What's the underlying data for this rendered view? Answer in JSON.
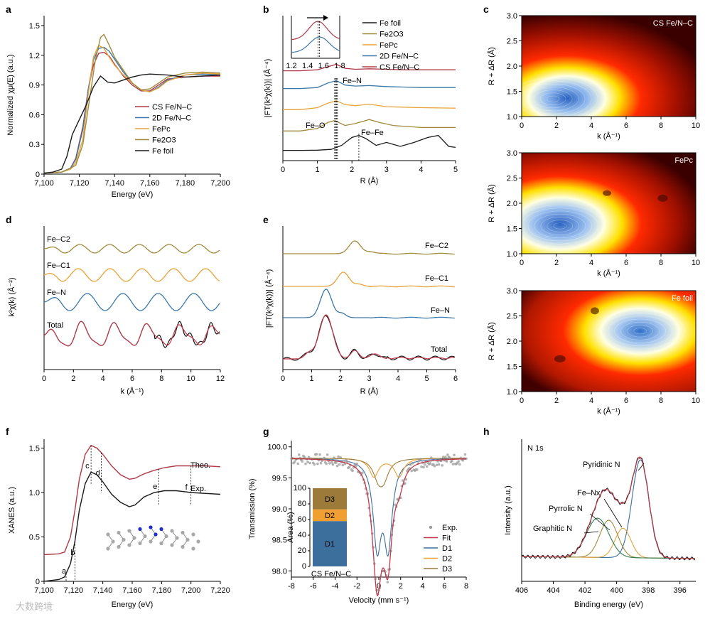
{
  "panel_labels": [
    "a",
    "b",
    "c",
    "d",
    "e",
    "f",
    "g",
    "h"
  ],
  "colors": {
    "cs_fenc": "#b03a48",
    "fe2o3": "#a08a3c",
    "fepc": "#e8a33a",
    "dfenc": "#3c78a8",
    "fefoil": "#1a1a1a",
    "exp_points": "#9a9a9a",
    "fit": "#c0394b",
    "d1": "#3c6f9c",
    "d2": "#f0a030",
    "d3": "#9c7a3a"
  },
  "watermark": "大数跨境",
  "chart_data": [
    {
      "id": "a",
      "type": "line",
      "xlabel": "Energy (eV)",
      "ylabel": "Normalized χμ(E) (a.u.)",
      "xlim": [
        7100,
        7200
      ],
      "ylim": [
        0,
        1.6
      ],
      "xticks": [
        7100,
        7120,
        7140,
        7160,
        7180,
        7200
      ],
      "xtick_labels": [
        "7,100",
        "7,120",
        "7,140",
        "7,160",
        "7,180",
        "7,200"
      ],
      "yticks": [
        0,
        0.3,
        0.6,
        0.9,
        1.2,
        1.5
      ],
      "ytick_labels": [
        "0",
        "0.3",
        "0.6",
        "0.9",
        "1.2",
        "1.5"
      ],
      "legend": [
        "CS Fe/N–C",
        "2D Fe/N–C",
        "FePc",
        "Fe2O3",
        "Fe foil"
      ],
      "legend_position": "right",
      "series": [
        {
          "name": "CS Fe/N–C",
          "color_key": "cs_fenc",
          "x": [
            7100,
            7110,
            7115,
            7118,
            7122,
            7125,
            7128,
            7131,
            7134,
            7137,
            7140,
            7145,
            7150,
            7155,
            7160,
            7165,
            7170,
            7180,
            7190,
            7200
          ],
          "y": [
            0.01,
            0.02,
            0.06,
            0.16,
            0.48,
            0.85,
            1.1,
            1.22,
            1.23,
            1.19,
            1.11,
            0.99,
            0.9,
            0.84,
            0.84,
            0.9,
            0.96,
            0.98,
            0.99,
            0.99
          ]
        },
        {
          "name": "2D Fe/N–C",
          "color_key": "dfenc",
          "x": [
            7100,
            7110,
            7115,
            7118,
            7122,
            7125,
            7128,
            7131,
            7134,
            7137,
            7140,
            7145,
            7150,
            7155,
            7160,
            7165,
            7170,
            7180,
            7190,
            7200
          ],
          "y": [
            0.01,
            0.02,
            0.06,
            0.15,
            0.45,
            0.85,
            1.15,
            1.27,
            1.28,
            1.24,
            1.16,
            1.03,
            0.92,
            0.85,
            0.83,
            0.88,
            0.95,
            1.0,
            1.01,
            1.0
          ]
        },
        {
          "name": "FePc",
          "color_key": "fepc",
          "x": [
            7100,
            7110,
            7115,
            7118,
            7122,
            7125,
            7128,
            7131,
            7134,
            7137,
            7140,
            7145,
            7150,
            7155,
            7160,
            7165,
            7170,
            7180,
            7190,
            7200
          ],
          "y": [
            0.01,
            0.02,
            0.05,
            0.12,
            0.35,
            0.8,
            1.18,
            1.3,
            1.27,
            1.18,
            1.1,
            1.0,
            0.92,
            0.85,
            0.83,
            0.87,
            0.94,
            1.0,
            1.02,
            1.01
          ]
        },
        {
          "name": "Fe2O3",
          "color_key": "fe2o3",
          "x": [
            7100,
            7110,
            7114,
            7118,
            7122,
            7126,
            7129,
            7132,
            7134,
            7137,
            7140,
            7145,
            7150,
            7155,
            7160,
            7165,
            7170,
            7180,
            7190,
            7200
          ],
          "y": [
            0.01,
            0.02,
            0.05,
            0.09,
            0.3,
            0.78,
            1.14,
            1.38,
            1.41,
            1.3,
            1.18,
            1.05,
            0.92,
            0.85,
            0.86,
            0.92,
            0.98,
            1.02,
            1.03,
            1.02
          ]
        },
        {
          "name": "Fe foil",
          "color_key": "fefoil",
          "x": [
            7100,
            7105,
            7110,
            7113,
            7116,
            7120,
            7124,
            7128,
            7132,
            7136,
            7140,
            7145,
            7150,
            7155,
            7160,
            7170,
            7180,
            7190,
            7200
          ],
          "y": [
            0.01,
            0.02,
            0.05,
            0.18,
            0.4,
            0.55,
            0.7,
            0.88,
            0.99,
            0.93,
            0.92,
            0.95,
            0.98,
            1.0,
            1.01,
            1.0,
            0.98,
            0.99,
            1.0
          ]
        }
      ]
    },
    {
      "id": "b",
      "type": "line",
      "xlabel": "R (Å)",
      "ylabel": "|FT(k³χ(k))| (Å⁻⁴)",
      "xlim": [
        0,
        5
      ],
      "xticks": [
        0,
        1,
        2,
        3,
        4,
        5
      ],
      "legend": [
        "Fe foil",
        "Fe2O3",
        "FePc",
        "2D Fe/N–C",
        "CS Fe/N–C"
      ],
      "legend_position": "top-right",
      "annotations": [
        "Fe–N",
        "Fe–O",
        "Fe–Fe"
      ],
      "inset": {
        "xlim": [
          1.2,
          1.8
        ],
        "xticks": [
          1.2,
          1.4,
          1.6,
          1.8
        ],
        "xtick_labels": [
          "1.2",
          "1.4",
          "1.6",
          "1.8"
        ]
      },
      "series": [
        {
          "name": "Fe foil",
          "color_key": "fefoil",
          "offset": 0.0,
          "x": [
            0,
            0.5,
            1.0,
            1.4,
            1.7,
            2.0,
            2.2,
            2.4,
            2.7,
            3.0,
            3.4,
            3.8,
            4.2,
            4.5,
            4.8,
            5.0
          ],
          "y": [
            0.1,
            0.1,
            0.12,
            0.2,
            0.6,
            1.4,
            1.6,
            1.3,
            0.6,
            0.9,
            0.5,
            0.9,
            1.4,
            1.6,
            0.5,
            0.4
          ]
        },
        {
          "name": "Fe2O3",
          "color_key": "fe2o3",
          "offset": 1.6,
          "x": [
            0,
            0.5,
            1.0,
            1.3,
            1.5,
            1.8,
            2.1,
            2.5,
            2.8,
            3.2,
            3.6,
            4.0,
            4.5,
            5.0
          ],
          "y": [
            0.05,
            0.05,
            0.3,
            0.9,
            1.1,
            0.6,
            0.8,
            1.2,
            0.9,
            0.6,
            0.5,
            0.4,
            0.4,
            0.4
          ]
        },
        {
          "name": "FePc",
          "color_key": "fepc",
          "offset": 3.0,
          "x": [
            0,
            0.5,
            1.0,
            1.3,
            1.55,
            1.8,
            2.1,
            2.5,
            3.0,
            3.5,
            4.0,
            5.0
          ],
          "y": [
            0.05,
            0.05,
            0.25,
            0.7,
            0.95,
            0.55,
            0.45,
            0.6,
            0.35,
            0.3,
            0.25,
            0.2
          ]
        },
        {
          "name": "2D Fe/N–C",
          "color_key": "dfenc",
          "offset": 4.0,
          "x": [
            0,
            0.5,
            1.0,
            1.3,
            1.55,
            1.8,
            2.1,
            2.5,
            3.0,
            3.5,
            4.0,
            5.0
          ],
          "y": [
            0.1,
            0.1,
            0.2,
            0.65,
            0.9,
            0.45,
            0.35,
            0.4,
            0.3,
            0.25,
            0.2,
            0.2
          ]
        },
        {
          "name": "CS Fe/N–C",
          "color_key": "cs_fenc",
          "offset": 5.0,
          "x": [
            0,
            0.5,
            1.0,
            1.3,
            1.55,
            1.8,
            2.1,
            2.5,
            3.0,
            3.5,
            4.0,
            5.0
          ],
          "y": [
            0.1,
            0.1,
            0.2,
            0.5,
            0.75,
            0.35,
            0.25,
            0.3,
            0.25,
            0.2,
            0.2,
            0.2
          ]
        }
      ]
    },
    {
      "id": "c",
      "type": "heatmap",
      "maps": [
        {
          "label": "CS Fe/N–C",
          "xlabel": "k (Å⁻¹)",
          "ylabel": "R + ΔR (Å)",
          "xlim": [
            0,
            10
          ],
          "ylim": [
            1.0,
            3.0
          ],
          "xticks": [
            0,
            2,
            4,
            6,
            8,
            10
          ],
          "yticks": [
            1.0,
            1.5,
            2.0,
            2.5,
            3.0
          ],
          "ytick_labels": [
            "1.0",
            "1.5",
            "2.0",
            "2.5",
            "3.0"
          ],
          "peak": [
            1.8,
            1.35
          ]
        },
        {
          "label": "FePc",
          "xlabel": "k (Å⁻¹)",
          "ylabel": "R + ΔR (Å)",
          "xlim": [
            0,
            10
          ],
          "ylim": [
            1.0,
            3.0
          ],
          "xticks": [
            0,
            2,
            4,
            6,
            8,
            10
          ],
          "yticks": [
            1.0,
            1.5,
            2.0,
            2.5,
            3.0
          ],
          "ytick_labels": [
            "1.0",
            "1.5",
            "2.0",
            "2.5",
            "3.0"
          ],
          "peak": [
            2.2,
            1.55
          ]
        },
        {
          "label": "Fe foil",
          "xlabel": "k (Å⁻¹)",
          "ylabel": "R + ΔR (Å)",
          "xlim": [
            0,
            10
          ],
          "ylim": [
            1.0,
            3.0
          ],
          "xticks": [
            0,
            2,
            4,
            6,
            8,
            10
          ],
          "yticks": [
            1.0,
            1.5,
            2.0,
            2.5,
            3.0
          ],
          "ytick_labels": [
            "1.0",
            "1.5",
            "2.0",
            "2.5",
            "3.0"
          ],
          "peak": [
            6.8,
            2.2
          ]
        }
      ]
    },
    {
      "id": "d",
      "type": "line",
      "xlabel": "k (Å⁻¹)",
      "ylabel": "k²χ(k) (Å⁻²)",
      "xlim": [
        0,
        12
      ],
      "xticks": [
        0,
        2,
        4,
        6,
        8,
        10,
        12
      ],
      "labels": [
        "Fe–C2",
        "Fe–C1",
        "Fe–N",
        "Total"
      ]
    },
    {
      "id": "e",
      "type": "line",
      "xlabel": "R (Å)",
      "ylabel": "|FT(k³χ(k))| (Å⁻⁴)",
      "xlim": [
        0,
        6
      ],
      "xticks": [
        0,
        1,
        2,
        3,
        4,
        5,
        6
      ],
      "labels": [
        "Fe–C2",
        "Fe–C1",
        "Fe–N",
        "Total"
      ]
    },
    {
      "id": "f",
      "type": "line",
      "xlabel": "Energy (eV)",
      "ylabel": "XANES (a.u.)",
      "xlim": [
        7100,
        7220
      ],
      "ylim": [
        0,
        1.6
      ],
      "xticks": [
        7100,
        7120,
        7140,
        7160,
        7180,
        7200,
        7220
      ],
      "xtick_labels": [
        "7,100",
        "7,120",
        "7,140",
        "7,160",
        "7,180",
        "7,200",
        "7,220"
      ],
      "yticks": [
        0,
        0.5,
        1.0,
        1.5
      ],
      "ytick_labels": [
        "0",
        "0.5",
        "1.0",
        "1.5"
      ],
      "labels": [
        "Theo.",
        "Exp."
      ],
      "feature_labels": [
        "a",
        "b",
        "c",
        "d",
        "e",
        "f"
      ],
      "features_x": [
        7115,
        7121,
        7132,
        7139,
        7178,
        7200
      ],
      "series": [
        {
          "name": "Theo.",
          "color_key": "cs_fenc",
          "x": [
            7100,
            7110,
            7114,
            7118,
            7121,
            7124,
            7128,
            7132,
            7136,
            7140,
            7146,
            7152,
            7158,
            7162,
            7168,
            7175,
            7182,
            7190,
            7200,
            7210,
            7220
          ],
          "y": [
            0.3,
            0.31,
            0.33,
            0.5,
            0.8,
            1.15,
            1.43,
            1.53,
            1.5,
            1.43,
            1.3,
            1.2,
            1.15,
            1.16,
            1.21,
            1.25,
            1.28,
            1.3,
            1.3,
            1.3,
            1.29
          ]
        },
        {
          "name": "Exp.",
          "color_key": "fefoil",
          "x": [
            7100,
            7110,
            7114,
            7118,
            7121,
            7124,
            7128,
            7132,
            7136,
            7140,
            7146,
            7152,
            7158,
            7162,
            7168,
            7175,
            7182,
            7190,
            7200,
            7210,
            7220
          ],
          "y": [
            0,
            0.02,
            0.05,
            0.2,
            0.45,
            0.8,
            1.1,
            1.23,
            1.2,
            1.12,
            0.98,
            0.89,
            0.84,
            0.86,
            0.95,
            1.0,
            1.02,
            1.02,
            1.0,
            0.99,
            0.98
          ]
        }
      ]
    },
    {
      "id": "g",
      "type": "scatter",
      "xlabel": "Velocity (mm s⁻¹)",
      "ylabel": "Transmission (%)",
      "xlim": [
        -8,
        8
      ],
      "ylim": [
        97.9,
        100.1
      ],
      "xticks": [
        -8,
        -6,
        -4,
        -2,
        0,
        2,
        4,
        6,
        8
      ],
      "yticks": [
        98.0,
        98.5,
        99.0,
        99.5,
        100.0
      ],
      "ytick_labels": [
        "98.0",
        "98.5",
        "99.0",
        "99.5",
        "100.0"
      ],
      "legend": [
        "Exp.",
        "Fit",
        "D1",
        "D2",
        "D3"
      ],
      "legend_position": "bottom-right",
      "inset": {
        "type": "bar",
        "ylabel": "Area (%)",
        "xlabel": "CS Fe/N–C",
        "ylim": [
          0,
          100
        ],
        "yticks": [
          0,
          20,
          40,
          60,
          80,
          100
        ],
        "stacked": [
          {
            "name": "D1",
            "value": 58
          },
          {
            "name": "D2",
            "value": 15
          },
          {
            "name": "D3",
            "value": 27
          }
        ]
      },
      "doublets": [
        {
          "name": "D1",
          "center": 0.35,
          "split": 1.0,
          "depth": 1.35,
          "width": 0.45
        },
        {
          "name": "D2",
          "center": 0.7,
          "split": 2.3,
          "depth": 0.3,
          "width": 0.5
        },
        {
          "name": "D3",
          "center": 0.2,
          "split": 0.5,
          "depth": 0.28,
          "width": 0.55
        }
      ]
    },
    {
      "id": "h",
      "type": "line",
      "xlabel": "Binding energy (eV)",
      "ylabel": "Intensity (a.u.)",
      "xlim": [
        406,
        395
      ],
      "xticks": [
        406,
        404,
        402,
        400,
        398,
        396
      ],
      "title": "N 1s",
      "annotations": [
        "Pyridinic N",
        "Fe–Nx",
        "Pyrrolic N",
        "Graphitic N"
      ],
      "components": [
        {
          "name": "Pyridinic N",
          "center": 398.5,
          "height": 1.0,
          "width": 0.75
        },
        {
          "name": "Fe–Nx",
          "center": 399.6,
          "height": 0.3,
          "width": 0.7
        },
        {
          "name": "Pyrrolic N",
          "center": 400.5,
          "height": 0.38,
          "width": 0.8
        },
        {
          "name": "Graphitic N",
          "center": 401.2,
          "height": 0.4,
          "width": 1.0
        }
      ]
    }
  ]
}
